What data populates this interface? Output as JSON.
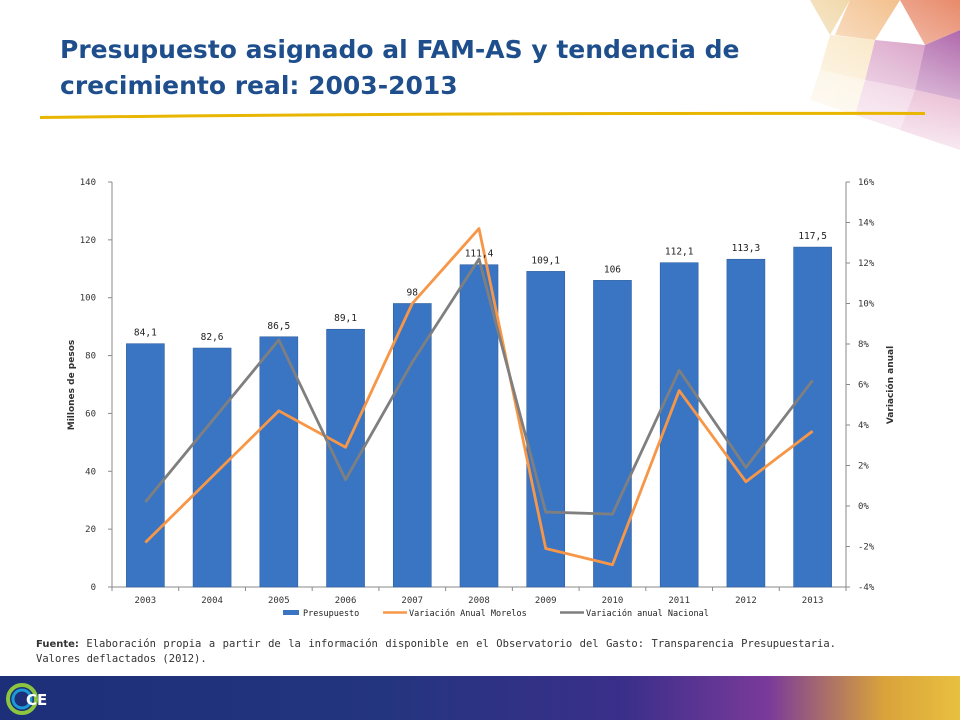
{
  "slide": {
    "title": "Presupuesto asignado al FAM-AS y tendencia de crecimiento real: 2003-2013",
    "source_label": "Fuente:",
    "source_text": " Elaboración propia a partir de la información disponible en el Observatorio del Gasto: Transparencia Presupuestaria. Valores deflactados (2012).",
    "logo": "ICE-logo-icon"
  },
  "colors": {
    "title": "#1f4e8c",
    "accent_underline": "#e8b500",
    "bar": "#3a75c4",
    "morelos": "#f79646",
    "nacional": "#7f7f7f"
  },
  "chart_data": {
    "type": "bar",
    "categories": [
      "2003",
      "2004",
      "2005",
      "2006",
      "2007",
      "2008",
      "2009",
      "2010",
      "2011",
      "2012",
      "2013"
    ],
    "series": [
      {
        "name": "Presupuesto",
        "type": "bar",
        "axis": "left",
        "values": [
          84.1,
          82.6,
          86.5,
          89.1,
          98,
          111.4,
          109.1,
          106,
          112.1,
          113.3,
          117.5
        ],
        "labels": [
          "84,1",
          "82,6",
          "86,5",
          "89,1",
          "98",
          "111,4",
          "109,1",
          "106",
          "112,1",
          "113,3",
          "117,5"
        ]
      },
      {
        "name": "Variación Anual Morelos",
        "type": "line",
        "axis": "right",
        "values": [
          -1.8,
          null,
          4.7,
          2.9,
          10.0,
          13.7,
          -2.1,
          -2.9,
          5.7,
          1.2,
          3.7
        ]
      },
      {
        "name": "Variación anual Nacional",
        "type": "line",
        "axis": "right",
        "values": [
          0.2,
          null,
          8.2,
          1.3,
          7.1,
          12.2,
          -0.3,
          -0.4,
          6.7,
          1.9,
          6.2
        ]
      }
    ],
    "ylabel": "Millones de pesos",
    "y2label": "Variación anual",
    "ylim": [
      0,
      140
    ],
    "y2lim": [
      -4,
      16
    ],
    "yticks": [
      "0",
      "20",
      "40",
      "60",
      "80",
      "100",
      "120",
      "140"
    ],
    "y2ticks": [
      "-4%",
      "-2%",
      "0%",
      "2%",
      "4%",
      "6%",
      "8%",
      "10%",
      "12%",
      "14%",
      "16%"
    ],
    "grid": false,
    "legend": "bottom"
  }
}
